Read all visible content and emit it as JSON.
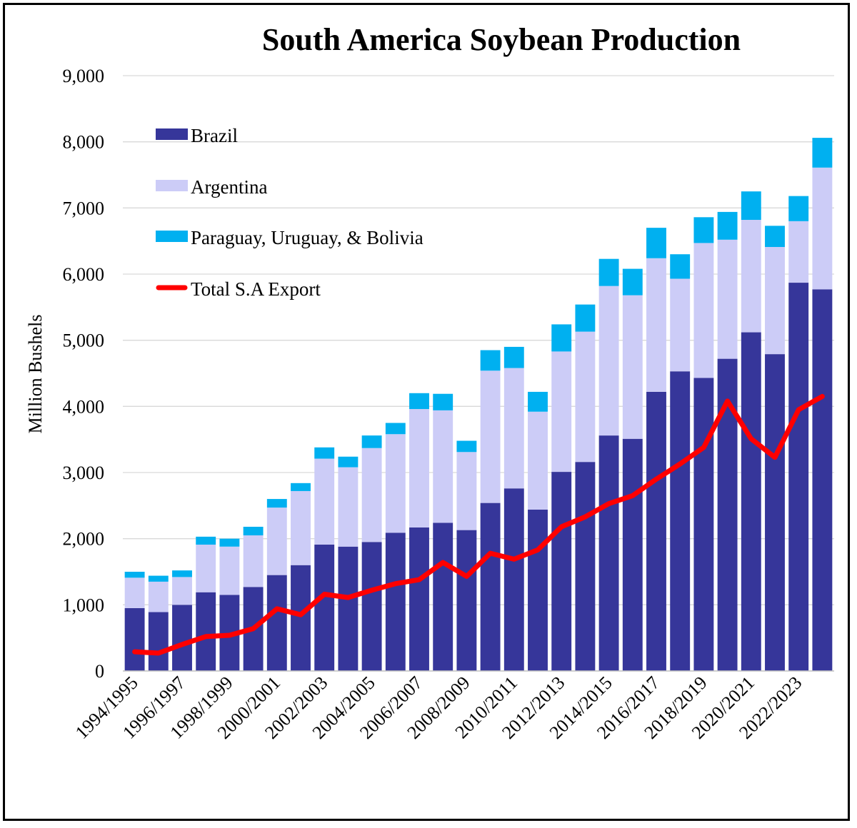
{
  "chart_data": {
    "type": "bar",
    "stacked": true,
    "title": "South America Soybean Production",
    "ylabel": "Million Bushels",
    "xlabel": "",
    "ylim": [
      0,
      9000
    ],
    "yticks": [
      "0",
      "1,000",
      "2,000",
      "3,000",
      "4,000",
      "5,000",
      "6,000",
      "7,000",
      "8,000",
      "9,000"
    ],
    "grid": "horizontal",
    "legend_position": "top-left",
    "categories": [
      "1994/1995",
      "1995/1996",
      "1996/1997",
      "1997/1998",
      "1998/1999",
      "1999/2000",
      "2000/2001",
      "2001/2002",
      "2002/2003",
      "2003/2004",
      "2004/2005",
      "2005/2006",
      "2006/2007",
      "2007/2008",
      "2008/2009",
      "2009/2010",
      "2010/2011",
      "2011/2012",
      "2012/2013",
      "2013/2014",
      "2014/2015",
      "2015/2016",
      "2016/2017",
      "2017/2018",
      "2018/2019",
      "2019/2020",
      "2020/2021",
      "2021/2022",
      "2022/2023",
      "2023/2024"
    ],
    "visible_tick_labels": [
      "1994/1995",
      "1996/1997",
      "1998/1999",
      "2000/2001",
      "2002/2003",
      "2004/2005",
      "2006/2007",
      "2008/2009",
      "2010/2011",
      "2012/2013",
      "2014/2015",
      "2016/2017",
      "2018/2019",
      "2020/2021",
      "2022/2023"
    ],
    "series": [
      {
        "name": "Brazil",
        "kind": "bar",
        "color": "#36369a",
        "values": [
          950,
          890,
          1000,
          1190,
          1150,
          1270,
          1450,
          1600,
          1910,
          1880,
          1950,
          2090,
          2170,
          2240,
          2130,
          2540,
          2760,
          2440,
          3010,
          3160,
          3560,
          3510,
          4220,
          4530,
          4430,
          4720,
          5120,
          4790,
          5870,
          5770
        ]
      },
      {
        "name": "Argentina",
        "kind": "bar",
        "color": "#ccccf7",
        "values": [
          460,
          460,
          420,
          720,
          730,
          780,
          1020,
          1120,
          1300,
          1200,
          1420,
          1490,
          1790,
          1700,
          1180,
          2000,
          1820,
          1480,
          1820,
          1970,
          2260,
          2170,
          2020,
          1400,
          2040,
          1800,
          1700,
          1620,
          930,
          1840
        ]
      },
      {
        "name": "Paraguay, Uruguay, & Bolivia",
        "kind": "bar",
        "color": "#00b0f0",
        "values": [
          90,
          90,
          100,
          120,
          120,
          130,
          130,
          120,
          170,
          160,
          190,
          170,
          240,
          250,
          170,
          310,
          320,
          300,
          410,
          410,
          410,
          400,
          460,
          370,
          390,
          420,
          430,
          320,
          380,
          450
        ]
      },
      {
        "name": "Total S.A Export",
        "kind": "line",
        "color": "#ff0000",
        "values": [
          290,
          270,
          400,
          520,
          540,
          640,
          940,
          850,
          1160,
          1110,
          1220,
          1320,
          1380,
          1640,
          1430,
          1780,
          1690,
          1830,
          2180,
          2330,
          2530,
          2650,
          2900,
          3130,
          3380,
          4080,
          3510,
          3230,
          3950,
          4150
        ]
      }
    ]
  }
}
